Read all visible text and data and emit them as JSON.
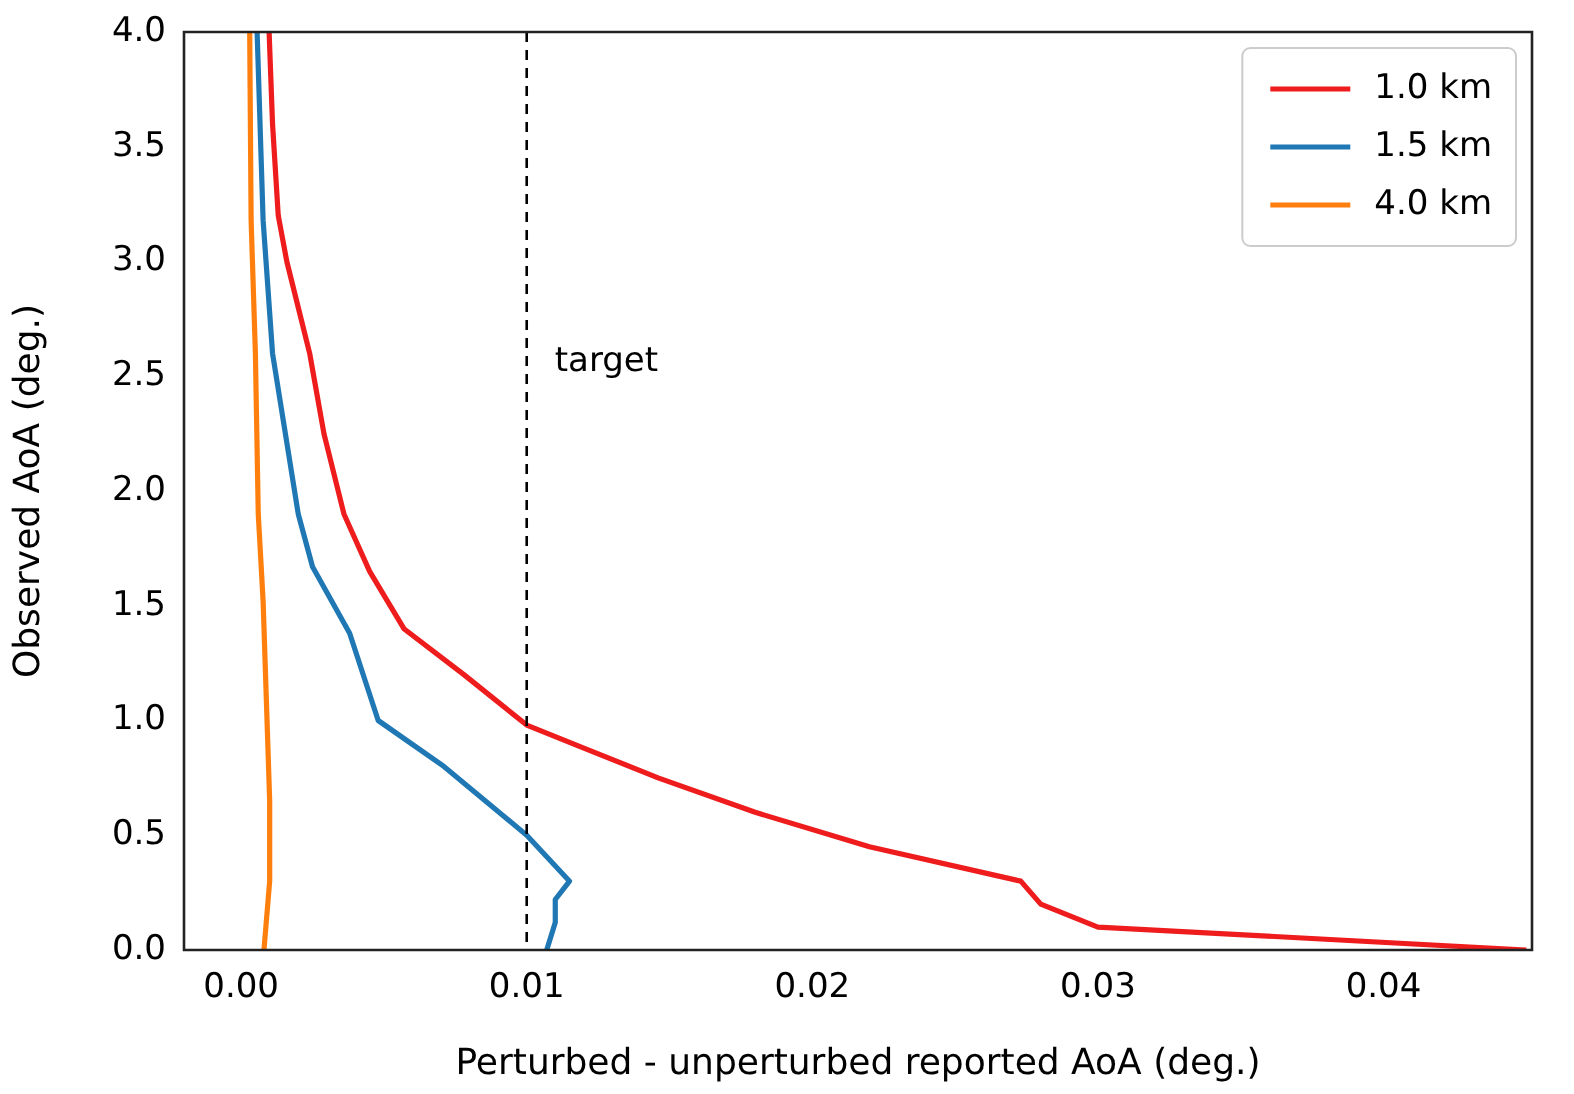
{
  "chart_data": {
    "type": "line",
    "xlabel": "Perturbed - unperturbed reported AoA (deg.)",
    "ylabel": "Observed AoA (deg.)",
    "xlim": [
      -0.002,
      0.0452
    ],
    "xticks": [
      {
        "value": 0,
        "label": "0.00"
      },
      0.01,
      0.02,
      0.03,
      0.04
    ],
    "ylim": [
      0,
      4
    ],
    "yticks": [
      {
        "value": 0,
        "label": "0.0"
      },
      0.5,
      {
        "value": 1,
        "label": "1.0"
      },
      1.5,
      {
        "value": 2,
        "label": "2.0"
      },
      2.5,
      {
        "value": 3,
        "label": "3.0"
      },
      3.5,
      {
        "value": 4,
        "label": "4.0"
      }
    ],
    "grid": false,
    "legend": "top right",
    "marker": "none",
    "line_style": "solid",
    "ref_lines": [
      {
        "axis": "x",
        "value": 0.01,
        "label": "target",
        "color": "#000000",
        "line_style": "dashed"
      }
    ],
    "series": [
      {
        "name": "1.0 km",
        "color": "#ee1c1c",
        "x": [
          0.045,
          0.03,
          0.028,
          0.0273,
          0.022,
          0.018,
          0.0146,
          0.012,
          0.01,
          0.0078,
          0.0057,
          0.0045,
          0.0036,
          0.0029,
          0.0024,
          0.0016,
          0.0013,
          0.0011,
          0.00098
        ],
        "values": [
          0,
          0.1,
          0.2,
          0.3,
          0.45,
          0.6,
          0.75,
          0.88,
          0.98,
          1.2,
          1.4,
          1.65,
          1.9,
          2.25,
          2.6,
          3.0,
          3.2,
          3.6,
          4.0
        ]
      },
      {
        "name": "1.5 km",
        "color": "#1f77b4",
        "x": [
          0.0107,
          0.011,
          0.011,
          0.0115,
          0.01,
          0.0071,
          0.0048,
          0.0038,
          0.0025,
          0.002,
          0.0011,
          0.00077,
          0.00056
        ],
        "values": [
          0,
          0.12,
          0.22,
          0.3,
          0.5,
          0.8,
          1.0,
          1.38,
          1.67,
          1.9,
          2.6,
          3.18,
          4.0
        ]
      },
      {
        "name": "4.0 km",
        "color": "#ff7f0e",
        "x": [
          0.0008,
          0.001,
          0.001,
          0.00077,
          0.0006,
          0.0005,
          0.00035,
          0.0003
        ],
        "values": [
          0,
          0.3,
          0.65,
          1.52,
          1.9,
          2.6,
          3.18,
          4.0
        ]
      }
    ]
  }
}
